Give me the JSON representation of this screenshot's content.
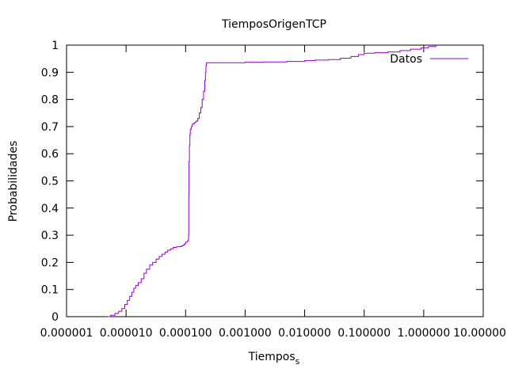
{
  "chart_data": {
    "type": "line",
    "title": "TiemposOrigenTCP",
    "xlabel_main": "Tiempos",
    "xlabel_sub": "s",
    "ylabel": "Probabilidades",
    "x_scale": "log",
    "xlim": [
      1e-06,
      10
    ],
    "ylim": [
      0,
      1
    ],
    "grid": false,
    "legend_position": "top-right",
    "x_ticks": [
      1e-06,
      1e-05,
      0.0001,
      0.001,
      0.01,
      0.1,
      1,
      10
    ],
    "x_tick_labels": [
      "0.000001",
      "0.000010",
      "0.000100",
      "0.001000",
      "0.010000",
      "0.100000",
      "1.000000",
      "10.000000"
    ],
    "y_ticks": [
      0,
      0.1,
      0.2,
      0.3,
      0.4,
      0.5,
      0.6,
      0.7,
      0.8,
      0.9,
      1
    ],
    "y_tick_labels": [
      "0",
      "0.1",
      "0.2",
      "0.3",
      "0.4",
      "0.5",
      "0.6",
      "0.7",
      "0.8",
      "0.9",
      "1"
    ],
    "series": [
      {
        "name": "Datos",
        "color": "#9400d3",
        "points": [
          [
            4.8e-06,
            0.0
          ],
          [
            5.5e-06,
            0.005
          ],
          [
            6.5e-06,
            0.012
          ],
          [
            7.5e-06,
            0.02
          ],
          [
            8.5e-06,
            0.03
          ],
          [
            9.5e-06,
            0.045
          ],
          [
            1.05e-05,
            0.06
          ],
          [
            1.15e-05,
            0.075
          ],
          [
            1.25e-05,
            0.09
          ],
          [
            1.35e-05,
            0.105
          ],
          [
            1.45e-05,
            0.115
          ],
          [
            1.6e-05,
            0.125
          ],
          [
            1.8e-05,
            0.14
          ],
          [
            2e-05,
            0.16
          ],
          [
            2.2e-05,
            0.175
          ],
          [
            2.5e-05,
            0.19
          ],
          [
            2.8e-05,
            0.2
          ],
          [
            3.2e-05,
            0.212
          ],
          [
            3.6e-05,
            0.222
          ],
          [
            4e-05,
            0.23
          ],
          [
            4.5e-05,
            0.238
          ],
          [
            5e-05,
            0.245
          ],
          [
            5.6e-05,
            0.25
          ],
          [
            6.2e-05,
            0.255
          ],
          [
            7e-05,
            0.257
          ],
          [
            7.8e-05,
            0.258
          ],
          [
            8.5e-05,
            0.26
          ],
          [
            9e-05,
            0.263
          ],
          [
            9.5e-05,
            0.268
          ],
          [
            0.0001,
            0.275
          ],
          [
            0.000108,
            0.28
          ],
          [
            0.000112,
            0.3
          ],
          [
            0.000113,
            0.45
          ],
          [
            0.000114,
            0.57
          ],
          [
            0.000116,
            0.63
          ],
          [
            0.000118,
            0.67
          ],
          [
            0.00012,
            0.69
          ],
          [
            0.000125,
            0.7
          ],
          [
            0.00013,
            0.71
          ],
          [
            0.00014,
            0.715
          ],
          [
            0.00015,
            0.72
          ],
          [
            0.00016,
            0.73
          ],
          [
            0.00017,
            0.75
          ],
          [
            0.00018,
            0.77
          ],
          [
            0.00019,
            0.8
          ],
          [
            0.0002,
            0.83
          ],
          [
            0.00021,
            0.87
          ],
          [
            0.000215,
            0.9
          ],
          [
            0.00022,
            0.925
          ],
          [
            0.000225,
            0.935
          ],
          [
            0.0003,
            0.935
          ],
          [
            0.001,
            0.937
          ],
          [
            0.002,
            0.938
          ],
          [
            0.005,
            0.94
          ],
          [
            0.01,
            0.943
          ],
          [
            0.015,
            0.945
          ],
          [
            0.025,
            0.947
          ],
          [
            0.04,
            0.952
          ],
          [
            0.06,
            0.958
          ],
          [
            0.08,
            0.965
          ],
          [
            0.1,
            0.97
          ],
          [
            0.15,
            0.972
          ],
          [
            0.25,
            0.975
          ],
          [
            0.4,
            0.98
          ],
          [
            0.6,
            0.985
          ],
          [
            0.9,
            0.99
          ],
          [
            1.2,
            0.995
          ],
          [
            1.6,
            1.0
          ]
        ]
      }
    ]
  }
}
